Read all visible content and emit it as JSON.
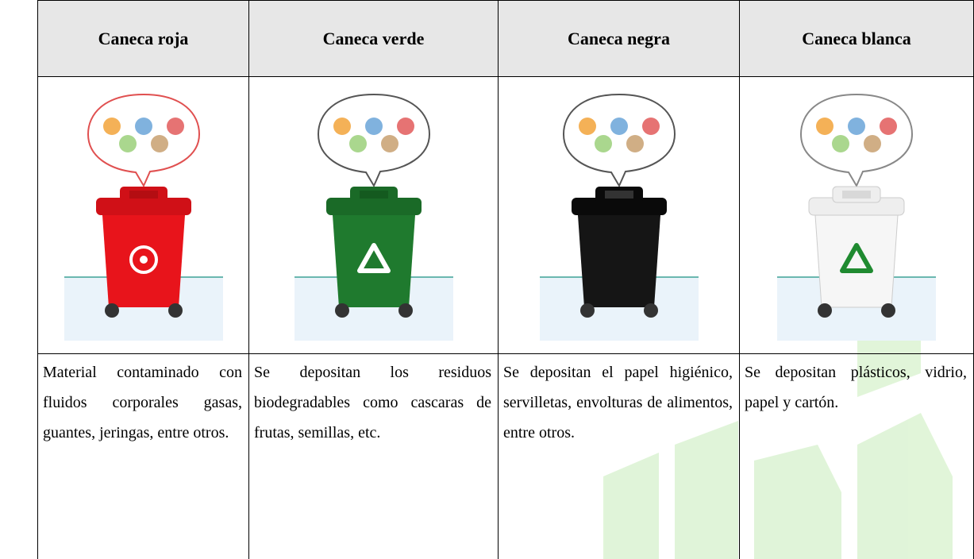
{
  "table": {
    "headers": [
      "Caneca roja",
      "Caneca verde",
      "Caneca negra",
      "Caneca blanca"
    ],
    "descriptions": [
      "Material contaminado con fluidos corporales gasas, guantes, jeringas, entre otros.",
      "Se depositan los residuos biodegradables como cascaras de frutas, semillas, etc.",
      "Se depositan el papel higiénico, servilletas, envolturas de alimentos, entre otros.",
      "Se depositan plásticos, vidrio, papel y cartón."
    ]
  }
}
